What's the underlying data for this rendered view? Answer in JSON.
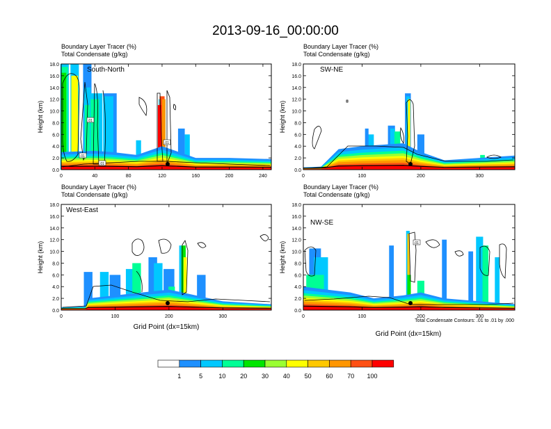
{
  "title": "2013-09-16_00:00:00",
  "footnote": "Total Condensate Contours: .01 to .01 by .000",
  "colorbar": {
    "colors": [
      "#ffffff",
      "#1e90ff",
      "#00c8ff",
      "#00ff96",
      "#00e600",
      "#9aff32",
      "#ffff00",
      "#ffc800",
      "#ff9600",
      "#ff5014",
      "#ff0000"
    ],
    "labels": [
      "1",
      "5",
      "10",
      "20",
      "30",
      "40",
      "50",
      "60",
      "70",
      "100"
    ]
  },
  "chart_data": [
    {
      "type": "heatmap",
      "label": "South-North",
      "subtitle1": "Boundary Layer Tracer   (%)",
      "subtitle2": "Total Condensate   (g/kg)",
      "ylabel": "Height (km)",
      "xlabel": "",
      "xlim": [
        0,
        250
      ],
      "ylim": [
        0,
        18
      ],
      "xticks": [
        "0",
        "40",
        "80",
        "120",
        "160",
        "200",
        "240"
      ],
      "yticks": [
        "0.0",
        "2.0",
        "4.0",
        "6.0",
        "8.0",
        "10.0",
        "12.0",
        "14.0",
        "16.0",
        "18.0"
      ],
      "cloud_tops_km": [
        18,
        12,
        13,
        2.5,
        3,
        12,
        3
      ]
    },
    {
      "type": "heatmap",
      "label": "SW-NE",
      "subtitle1": "Boundary Layer Tracer   (%)",
      "subtitle2": "Total Condensate   (g/kg)",
      "ylabel": "Height (km)",
      "xlabel": "",
      "xlim": [
        0,
        360
      ],
      "ylim": [
        0,
        18
      ],
      "xticks": [
        "0",
        "100",
        "200",
        "300"
      ],
      "yticks": [
        "0.0",
        "2.0",
        "4.0",
        "6.0",
        "8.0",
        "10.0",
        "12.0",
        "14.0",
        "16.0",
        "18.0"
      ],
      "cloud_tops_km": [
        4.5,
        7.5,
        13,
        3
      ]
    },
    {
      "type": "heatmap",
      "label": "West-East",
      "subtitle1": "Boundary Layer Tracer   (%)",
      "subtitle2": "Total Condensate   (g/kg)",
      "ylabel": "Height (km)",
      "xlabel": "Grid Point (dx=15km)",
      "xlim": [
        0,
        390
      ],
      "ylim": [
        0,
        18
      ],
      "xticks": [
        "0",
        "100",
        "200",
        "300"
      ],
      "yticks": [
        "0.0",
        "2.0",
        "4.0",
        "6.0",
        "8.0",
        "10.0",
        "12.0",
        "14.0",
        "16.0",
        "18.0"
      ],
      "cloud_tops_km": [
        6.5,
        11,
        10,
        9,
        3
      ]
    },
    {
      "type": "heatmap",
      "label": "NW-SE",
      "subtitle1": "Boundary Layer Tracer   (%)",
      "subtitle2": "Total Condensate   (g/kg)",
      "ylabel": "Height (km)",
      "xlabel": "Grid Point (dx=15km)",
      "xlim": [
        0,
        360
      ],
      "ylim": [
        0,
        18
      ],
      "xticks": [
        "0",
        "100",
        "200",
        "300"
      ],
      "yticks": [
        "0.0",
        "2.0",
        "4.0",
        "6.0",
        "8.0",
        "10.0",
        "12.0",
        "14.0",
        "16.0",
        "18.0"
      ],
      "cloud_tops_km": [
        10.5,
        5,
        13.5,
        12.5,
        3
      ]
    }
  ]
}
